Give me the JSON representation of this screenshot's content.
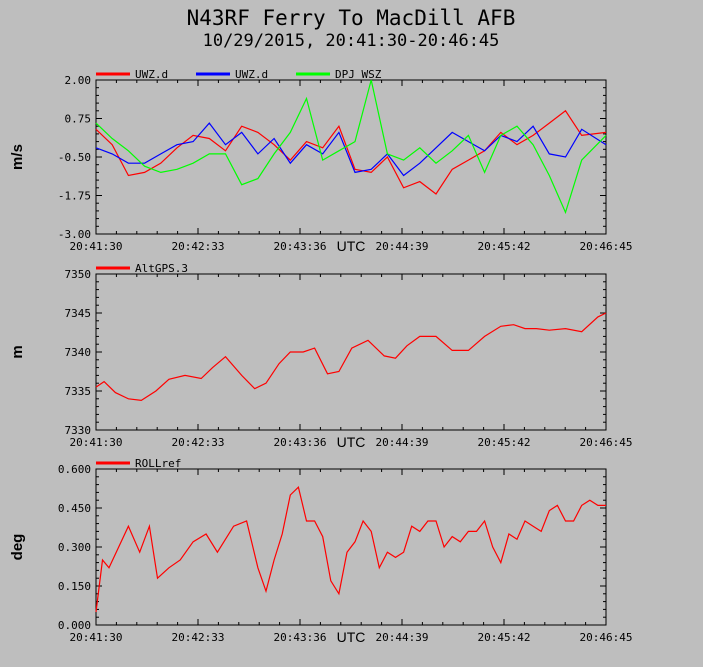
{
  "title": "N43RF Ferry To MacDill AFB",
  "subtitle": "10/29/2015, 20:41:30-20:46:45",
  "colors": {
    "background": "#bebebe",
    "red": "#ff0000",
    "blue": "#0000ff",
    "green": "#00ff00"
  },
  "chart_data": [
    {
      "type": "line",
      "ylabel": "m/s",
      "xlabel": "UTC",
      "ylim": [
        -3.0,
        2.0
      ],
      "yticks": [
        "2.00",
        "0.75",
        "-0.50",
        "-1.75",
        "-3.00"
      ],
      "ytick_values": [
        2.0,
        0.75,
        -0.5,
        -1.75,
        -3.0
      ],
      "xticks": [
        "20:41:30",
        "20:42:33",
        "20:43:36",
        "20:44:39",
        "20:45:42",
        "20:46:45"
      ],
      "grid": false,
      "legend_position": "top-left",
      "series": [
        {
          "name": "UWZ.d",
          "color": "#ff0000",
          "x": [
            0,
            10,
            20,
            30,
            40,
            50,
            60,
            70,
            80,
            90,
            100,
            110,
            120,
            130,
            140,
            150,
            160,
            170,
            180,
            190,
            200,
            210,
            220,
            230,
            240,
            250,
            260,
            270,
            280,
            290,
            300,
            315
          ],
          "values": [
            0.4,
            -0.1,
            -1.1,
            -1.0,
            -0.7,
            -0.2,
            0.2,
            0.1,
            -0.3,
            0.5,
            0.3,
            -0.1,
            -0.6,
            0.0,
            -0.2,
            0.5,
            -0.9,
            -1.0,
            -0.5,
            -1.5,
            -1.3,
            -1.7,
            -0.9,
            -0.6,
            -0.3,
            0.3,
            -0.1,
            0.2,
            0.6,
            1.0,
            0.2,
            0.3
          ]
        },
        {
          "name": "UWZ.d",
          "color": "#0000ff",
          "x": [
            0,
            10,
            20,
            30,
            40,
            50,
            60,
            70,
            80,
            90,
            100,
            110,
            120,
            130,
            140,
            150,
            160,
            170,
            180,
            190,
            200,
            210,
            220,
            230,
            240,
            250,
            260,
            270,
            280,
            290,
            300,
            315
          ],
          "values": [
            -0.2,
            -0.4,
            -0.7,
            -0.7,
            -0.4,
            -0.1,
            0.0,
            0.6,
            -0.1,
            0.3,
            -0.4,
            0.1,
            -0.7,
            -0.1,
            -0.4,
            0.3,
            -1.0,
            -0.9,
            -0.4,
            -1.1,
            -0.7,
            -0.2,
            0.3,
            0.0,
            -0.3,
            0.2,
            0.0,
            0.5,
            -0.4,
            -0.5,
            0.4,
            -0.1
          ]
        },
        {
          "name": "DPJ_WSZ",
          "color": "#00ff00",
          "x": [
            0,
            10,
            20,
            30,
            40,
            50,
            60,
            70,
            80,
            90,
            100,
            110,
            120,
            130,
            140,
            150,
            160,
            170,
            180,
            190,
            200,
            210,
            220,
            230,
            240,
            250,
            260,
            270,
            280,
            290,
            300,
            315
          ],
          "values": [
            0.6,
            0.1,
            -0.3,
            -0.8,
            -1.0,
            -0.9,
            -0.7,
            -0.4,
            -0.4,
            -1.4,
            -1.2,
            -0.4,
            0.3,
            1.4,
            -0.6,
            -0.3,
            0.0,
            2.0,
            -0.4,
            -0.6,
            -0.2,
            -0.7,
            -0.3,
            0.2,
            -1.0,
            0.2,
            0.5,
            -0.1,
            -1.1,
            -2.3,
            -0.6,
            0.2
          ]
        }
      ]
    },
    {
      "type": "line",
      "ylabel": "m",
      "xlabel": "UTC",
      "ylim": [
        7330,
        7350
      ],
      "yticks": [
        "7350",
        "7345",
        "7340",
        "7335",
        "7330"
      ],
      "ytick_values": [
        7350,
        7345,
        7340,
        7335,
        7330
      ],
      "xticks": [
        "20:41:30",
        "20:42:33",
        "20:43:36",
        "20:44:39",
        "20:45:42",
        "20:46:45"
      ],
      "grid": false,
      "legend_position": "top-left",
      "series": [
        {
          "name": "AltGPS.3",
          "color": "#ff0000",
          "x": [
            0,
            5,
            12,
            20,
            28,
            37,
            45,
            55,
            65,
            72,
            80,
            90,
            98,
            105,
            113,
            120,
            128,
            135,
            143,
            150,
            158,
            168,
            178,
            185,
            192,
            200,
            210,
            220,
            230,
            240,
            250,
            258,
            265,
            272,
            280,
            290,
            300,
            310,
            315
          ],
          "values": [
            7335.5,
            7336.2,
            7334.8,
            7334.0,
            7333.8,
            7335.0,
            7336.5,
            7337.0,
            7336.6,
            7338.0,
            7339.4,
            7337.0,
            7335.3,
            7336.0,
            7338.5,
            7340.0,
            7340.0,
            7340.5,
            7337.2,
            7337.5,
            7340.5,
            7341.5,
            7339.5,
            7339.2,
            7340.8,
            7342.0,
            7342.0,
            7340.2,
            7340.2,
            7342.0,
            7343.3,
            7343.5,
            7343.0,
            7343.0,
            7342.8,
            7343.0,
            7342.6,
            7344.5,
            7345.0
          ]
        }
      ]
    },
    {
      "type": "line",
      "ylabel": "deg",
      "xlabel": "UTC",
      "ylim": [
        0.0,
        0.6
      ],
      "yticks": [
        "0.600",
        "0.450",
        "0.300",
        "0.150",
        "0.000"
      ],
      "ytick_values": [
        0.6,
        0.45,
        0.3,
        0.15,
        0.0
      ],
      "xticks": [
        "20:41:30",
        "20:42:33",
        "20:43:36",
        "20:44:39",
        "20:45:42",
        "20:46:45"
      ],
      "grid": false,
      "legend_position": "top-left",
      "series": [
        {
          "name": "ROLLref",
          "color": "#ff0000",
          "x": [
            0,
            4,
            8,
            14,
            20,
            27,
            33,
            38,
            45,
            52,
            60,
            68,
            75,
            85,
            93,
            100,
            105,
            110,
            115,
            120,
            125,
            130,
            135,
            140,
            145,
            150,
            155,
            160,
            165,
            170,
            175,
            180,
            185,
            190,
            195,
            200,
            205,
            210,
            215,
            220,
            225,
            230,
            235,
            240,
            245,
            250,
            255,
            260,
            265,
            270,
            275,
            280,
            285,
            290,
            295,
            300,
            305,
            310,
            315
          ],
          "values": [
            0.05,
            0.25,
            0.22,
            0.3,
            0.38,
            0.28,
            0.38,
            0.18,
            0.22,
            0.25,
            0.32,
            0.35,
            0.28,
            0.38,
            0.4,
            0.22,
            0.13,
            0.25,
            0.35,
            0.5,
            0.53,
            0.4,
            0.4,
            0.34,
            0.17,
            0.12,
            0.28,
            0.32,
            0.4,
            0.36,
            0.22,
            0.28,
            0.26,
            0.28,
            0.38,
            0.36,
            0.4,
            0.4,
            0.3,
            0.34,
            0.32,
            0.36,
            0.36,
            0.4,
            0.3,
            0.24,
            0.35,
            0.33,
            0.4,
            0.38,
            0.36,
            0.44,
            0.46,
            0.4,
            0.4,
            0.46,
            0.48,
            0.46,
            0.46
          ]
        }
      ]
    }
  ]
}
